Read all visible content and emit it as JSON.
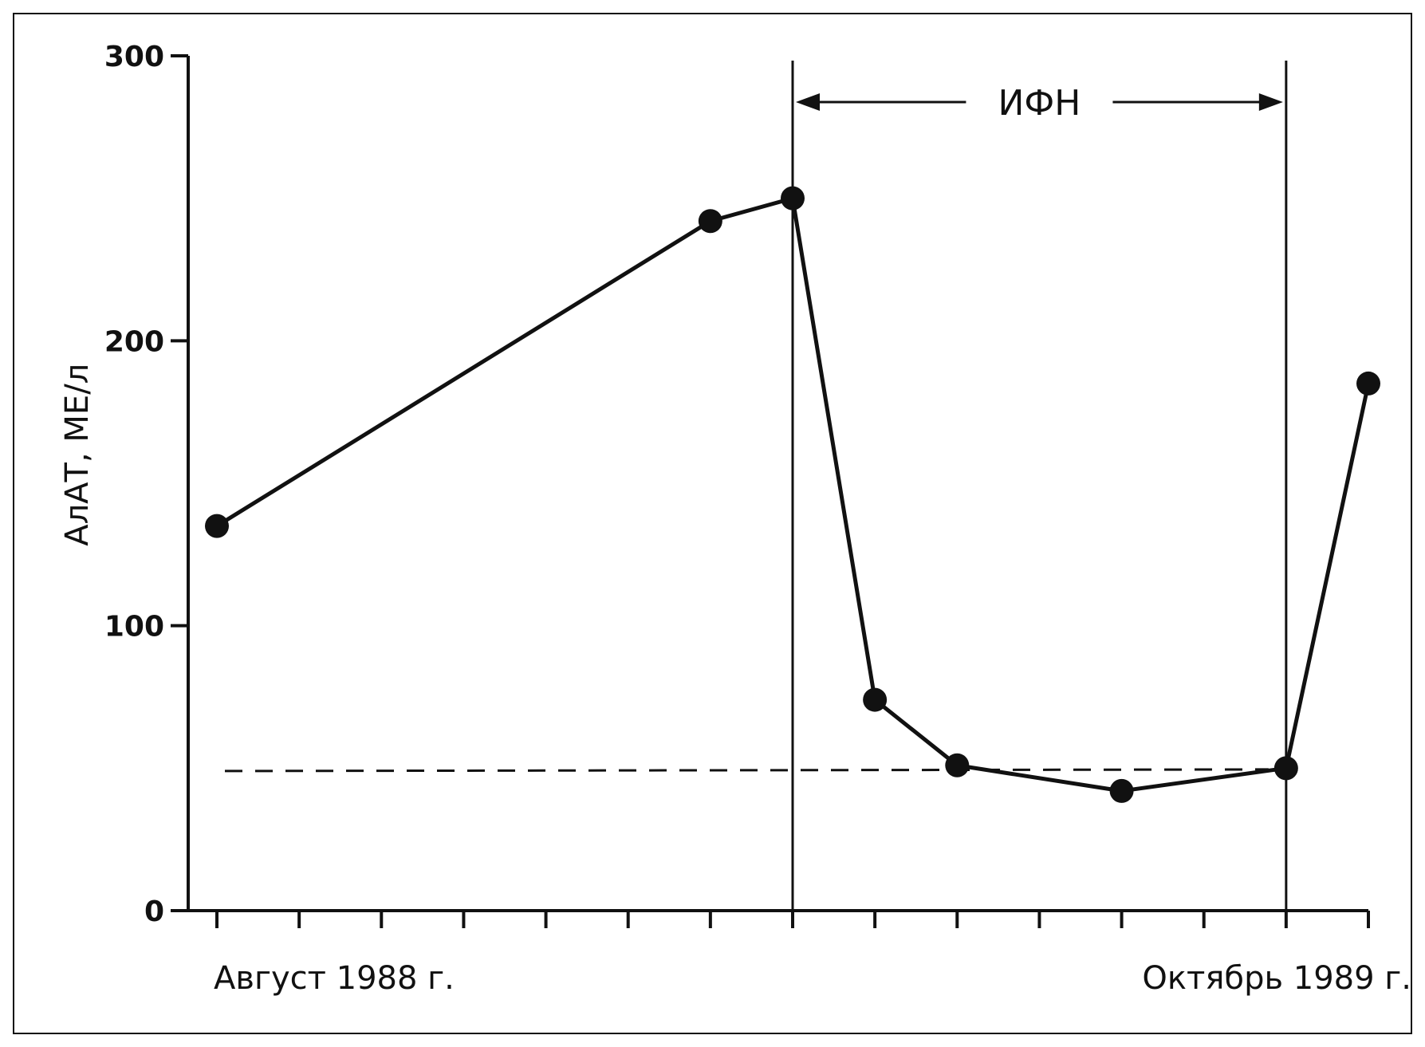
{
  "chart_data": {
    "type": "line",
    "title": "",
    "ylabel": "АлАТ, МЕ/л",
    "ylim": [
      0,
      300
    ],
    "yticks": [
      0,
      100,
      200,
      300
    ],
    "ytick_labels": [
      "0",
      "100",
      "200",
      "300"
    ],
    "x_start_label": "Август 1988 г.",
    "x_end_label": "Октябрь 1989 г.",
    "xlim": [
      0,
      14
    ],
    "x_ticks": [
      0,
      1,
      2,
      3,
      4,
      5,
      6,
      7,
      8,
      9,
      10,
      11,
      12,
      13,
      14
    ],
    "series": [
      {
        "x": [
          0,
          6,
          7,
          8,
          9,
          11,
          13,
          14
        ],
        "values": [
          135,
          242,
          250,
          74,
          51,
          42,
          50,
          185
        ]
      }
    ],
    "reference_line": {
      "value": 49,
      "style": "dashed"
    },
    "period_annotation": {
      "label": "ИФН",
      "x_start": 7,
      "x_end": 13
    },
    "colors": {
      "line": "#111111",
      "marker": "#111111"
    }
  }
}
